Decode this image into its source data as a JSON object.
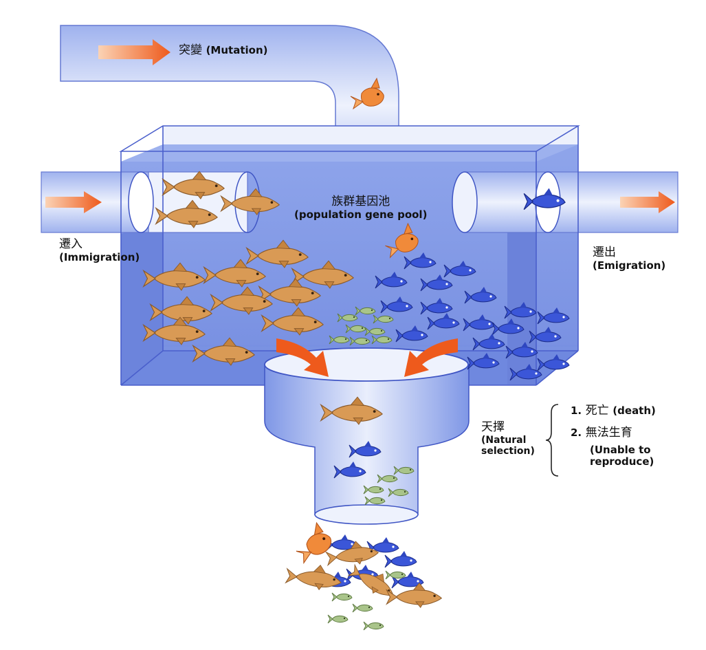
{
  "mutation": {
    "zh": "突變",
    "en": "(Mutation)"
  },
  "gene_pool": {
    "zh": "族群基因池",
    "en": "(population gene pool)"
  },
  "immigration": {
    "zh": "遷入",
    "en": "(Immigration)"
  },
  "emigration": {
    "zh": "遷出",
    "en": "(Emigration)"
  },
  "natural_selection": {
    "zh": "天擇",
    "en_line1": "(Natural",
    "en_line2": "selection)"
  },
  "outcomes": [
    {
      "num": "1.",
      "zh": "死亡",
      "en": "(death)"
    },
    {
      "num": "2.",
      "zh": "無法生育",
      "en_line1": "(Unable to",
      "en_line2": "reproduce)"
    }
  ],
  "colors": {
    "pipe": "#c7d3f4",
    "pipe_edge": "#3f55c4",
    "water": "#7f97e6",
    "arrow": "#f06a2a",
    "orange_fish": "#d99a55",
    "blue_fish": "#3b56d8",
    "green_fish": "#a9c48a"
  }
}
